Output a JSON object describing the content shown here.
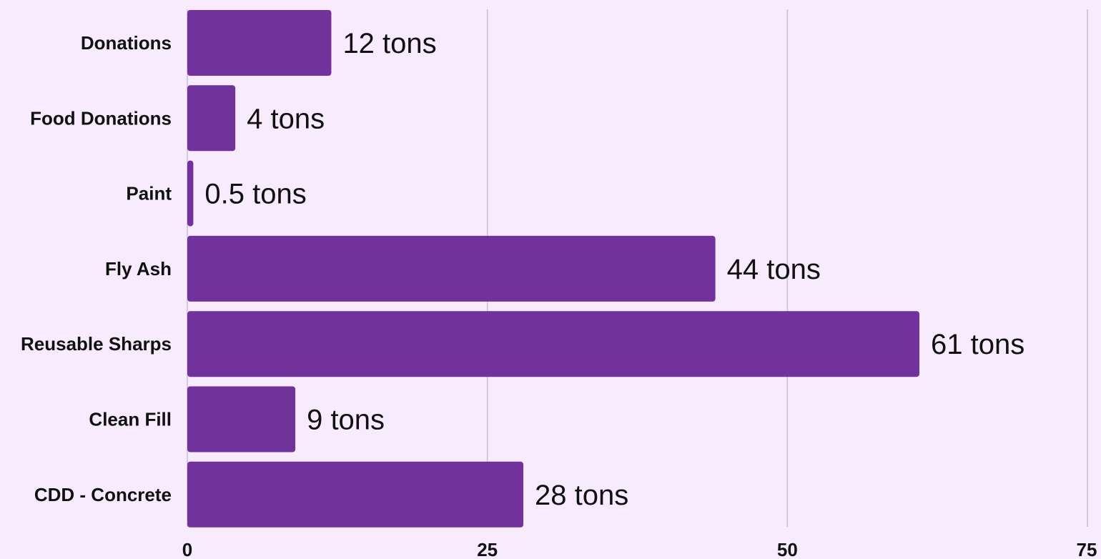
{
  "colors": {
    "background": "#f7ebfd",
    "bar": "#71329b",
    "grid": "#c9c0d6",
    "text": "#111111"
  },
  "chart_data": {
    "type": "bar",
    "orientation": "horizontal",
    "title": "",
    "xlabel": "",
    "ylabel": "",
    "categories": [
      "Donations",
      "Food Donations",
      "Paint",
      "Fly Ash",
      "Reusable Sharps",
      "Clean Fill",
      "CDD - Concrete"
    ],
    "values": [
      12,
      4,
      0.5,
      44,
      61,
      9,
      28
    ],
    "data_labels": [
      "12 tons",
      "4 tons",
      "0.5 tons",
      "44 tons",
      "61 tons",
      "9 tons",
      "28 tons"
    ],
    "xlim": [
      0,
      75
    ],
    "xticks": [
      0,
      25,
      50,
      75
    ],
    "xtick_labels": [
      "0",
      "25",
      "50",
      "75"
    ],
    "grid": "vertical",
    "legend": "none"
  }
}
